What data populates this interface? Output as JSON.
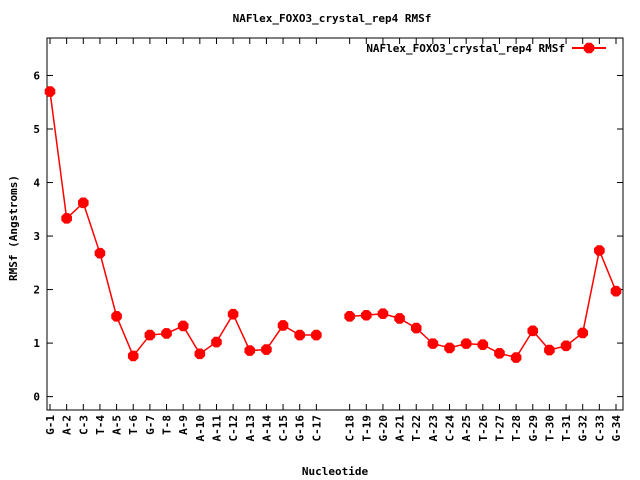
{
  "chart_data": {
    "type": "line",
    "title": "NAFlex_FOXO3_crystal_rep4 RMSf",
    "xlabel": "Nucleotide",
    "ylabel": "RMSf (Angstroms)",
    "ylim": [
      -0.25,
      6.7
    ],
    "yticks": [
      0,
      1,
      2,
      3,
      4,
      5,
      6
    ],
    "grid": false,
    "legend_position": "top-right",
    "series": [
      {
        "name": "NAFlex_FOXO3_crystal_rep4 RMSf",
        "color": "#ff0000",
        "segments": [
          {
            "x": [
              "G-1",
              "A-2",
              "C-3",
              "T-4",
              "A-5",
              "T-6",
              "G-7",
              "T-8",
              "A-9",
              "A-10",
              "A-11",
              "C-12",
              "A-13",
              "A-14",
              "C-15",
              "G-16",
              "C-17"
            ],
            "values": [
              5.7,
              3.33,
              3.62,
              2.68,
              1.5,
              0.76,
              1.15,
              1.18,
              1.32,
              0.8,
              1.02,
              1.54,
              0.86,
              0.88,
              1.33,
              1.15,
              1.15
            ]
          },
          {
            "x": [
              "C-18",
              "T-19",
              "G-20",
              "A-21",
              "T-22",
              "A-23",
              "C-24",
              "A-25",
              "T-26",
              "T-27",
              "T-28",
              "G-29",
              "T-30",
              "T-31",
              "G-32",
              "C-33",
              "G-34"
            ],
            "values": [
              1.5,
              1.52,
              1.55,
              1.46,
              1.28,
              0.99,
              0.91,
              0.99,
              0.97,
              0.81,
              0.73,
              1.23,
              0.87,
              0.95,
              1.19,
              2.73,
              1.97
            ]
          }
        ]
      }
    ]
  }
}
